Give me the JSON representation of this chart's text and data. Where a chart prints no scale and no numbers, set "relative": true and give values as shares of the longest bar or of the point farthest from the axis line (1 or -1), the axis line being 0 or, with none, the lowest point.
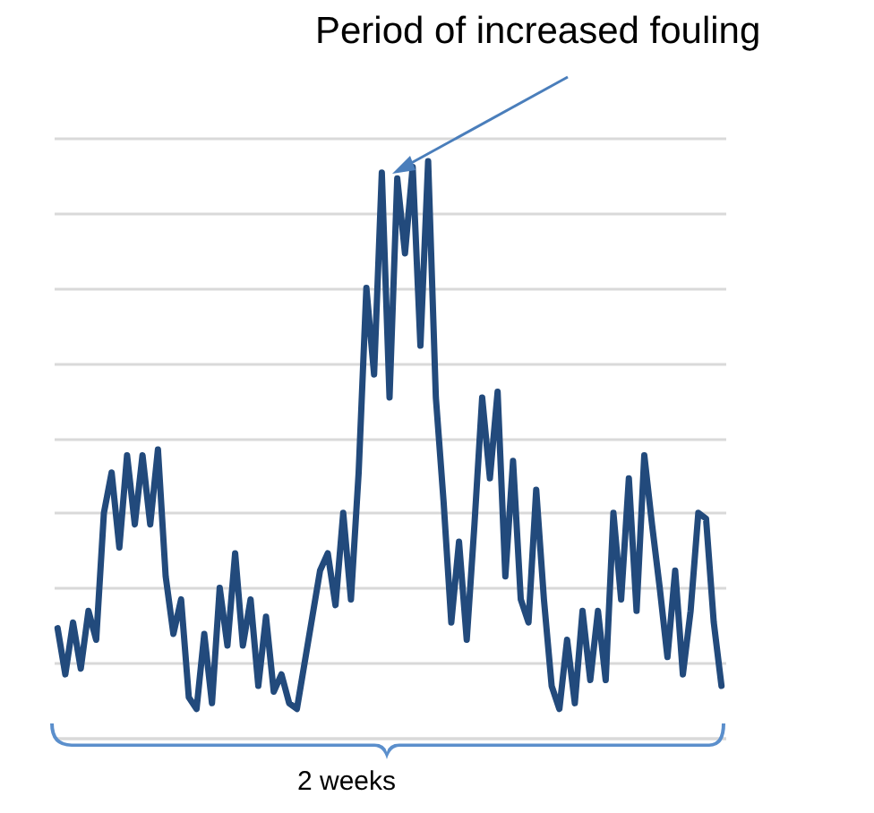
{
  "chart_data": {
    "type": "line",
    "relative": true,
    "grid": "y",
    "annotations": [
      "Period of increased fouling",
      "2 weeks"
    ],
    "categories": [
      null,
      null,
      null,
      null,
      null,
      null,
      null,
      null,
      null,
      null,
      null,
      null,
      null,
      null,
      null,
      null,
      null,
      null,
      null,
      null,
      null,
      null,
      null,
      null,
      null,
      null,
      null,
      null,
      null,
      null,
      null,
      null,
      null,
      null,
      null,
      null,
      null,
      null,
      null,
      null,
      null,
      null,
      null,
      null,
      null,
      null,
      null,
      null,
      null,
      null,
      null,
      null,
      null,
      null,
      null,
      null,
      null,
      null,
      null,
      null,
      null,
      null,
      null,
      null,
      null,
      null,
      null,
      null,
      null,
      null,
      null,
      null,
      null,
      null,
      null,
      null,
      null,
      null,
      null,
      null,
      null,
      null,
      null,
      null,
      null,
      null,
      null
    ],
    "series": [
      {
        "color": "#224a7c",
        "values": [
          0.19,
          0.11,
          0.2,
          0.12,
          0.22,
          0.17,
          0.39,
          0.46,
          0.33,
          0.49,
          0.37,
          0.49,
          0.37,
          0.5,
          0.28,
          0.18,
          0.24,
          0.07,
          0.05,
          0.18,
          0.06,
          0.26,
          0.16,
          0.32,
          0.16,
          0.24,
          0.09,
          0.21,
          0.08,
          0.11,
          0.06,
          0.05,
          0.13,
          0.21,
          0.29,
          0.32,
          0.23,
          0.39,
          0.24,
          0.46,
          0.78,
          0.63,
          0.98,
          0.59,
          0.97,
          0.84,
          0.99,
          0.68,
          1,
          0.59,
          0.41,
          0.2,
          0.34,
          0.17,
          0.37,
          0.59,
          0.45,
          0.6,
          0.28,
          0.48,
          0.24,
          0.2,
          0.43,
          0.24,
          0.09,
          0.05,
          0.17,
          0.06,
          0.22,
          0.1,
          0.22,
          0.1,
          0.39,
          0.24,
          0.45,
          0.22,
          0.49,
          0.37,
          0.26,
          0.14,
          0.29,
          0.11,
          0.22,
          0.39,
          0.38,
          0.2,
          0.09
        ]
      }
    ]
  }
}
